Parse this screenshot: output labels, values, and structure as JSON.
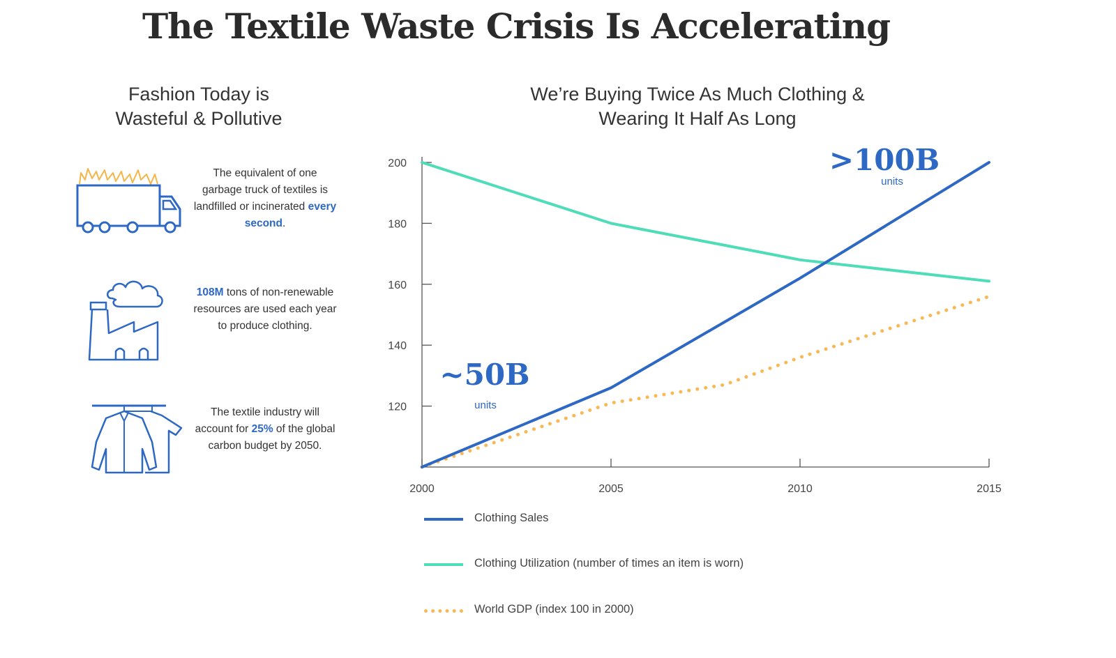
{
  "page": {
    "title": "The Textile Waste Crisis Is Accelerating"
  },
  "left_panel": {
    "heading_line1": "Fashion Today is",
    "heading_line2": "Wasteful & Pollutive",
    "facts": [
      {
        "icon": "burning-truck-icon",
        "before": "The equivalent of one garbage truck of textiles is landfilled or incinerated ",
        "highlight": "every second",
        "after": "."
      },
      {
        "icon": "factory-smoke-icon",
        "before": "",
        "highlight": "108M",
        "after": " tons of non-renewable resources are used each year to produce clothing."
      },
      {
        "icon": "clothes-rack-icon",
        "before": "The textile industry will account for ",
        "highlight": "25%",
        "after": " of the global carbon budget by 2050."
      }
    ]
  },
  "chart_panel": {
    "heading_line1": "We’re Buying Twice As Much Clothing &",
    "heading_line2": "Wearing It Half As Long",
    "annotations": [
      {
        "value": "~50B",
        "unit": "units"
      },
      {
        "value": ">100B",
        "unit": "units"
      }
    ]
  },
  "colors": {
    "accent_blue": "#2d68c4",
    "utilization_green": "#4fdcb8",
    "gdp_orange": "#f7b955",
    "flame_orange": "#f5b547",
    "axis": "#555555"
  },
  "chart_data": {
    "type": "line",
    "title": "We’re Buying Twice As Much Clothing & Wearing It Half As Long",
    "xlabel": "",
    "ylabel": "",
    "x_ticks": [
      "2000",
      "2005",
      "2010",
      "2015"
    ],
    "y_ticks": [
      120,
      140,
      160,
      180,
      200
    ],
    "xlim": [
      2000,
      2015
    ],
    "ylim": [
      100,
      200
    ],
    "grid": false,
    "legend_placement": "bottom",
    "series": [
      {
        "name": "Clothing Sales",
        "style": "solid",
        "color": "#2d68c4",
        "x": [
          2000,
          2005,
          2010,
          2015
        ],
        "y": [
          100,
          126,
          162,
          200
        ]
      },
      {
        "name": "Clothing Utilization (number of times an item is worn)",
        "style": "solid",
        "color": "#4fdcb8",
        "x": [
          2000,
          2005,
          2010,
          2015
        ],
        "y": [
          200,
          180,
          168,
          161
        ]
      },
      {
        "name": "World GDP (index 100 in 2000)",
        "style": "dotted",
        "color": "#f7b955",
        "x": [
          2000,
          2005,
          2008,
          2010,
          2015
        ],
        "y": [
          100,
          121,
          127,
          136,
          156
        ]
      }
    ]
  }
}
